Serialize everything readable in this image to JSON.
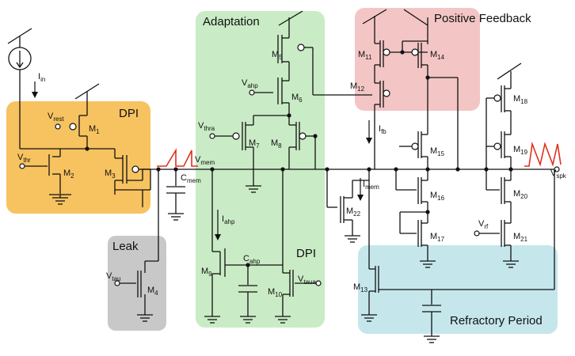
{
  "blocks": {
    "dpi_in": "DPI",
    "adaptation": "Adaptation",
    "positive_feedback": "Positive Feedback",
    "leak": "Leak",
    "dpi_adapt": "DPI",
    "refractory": "Refractory Period"
  },
  "block_colors": {
    "dpi_in": "#f7c260",
    "adaptation": "#c9ebc5",
    "positive_feedback": "#f3c5c5",
    "leak": "#c8c8c8",
    "refractory": "#c5e7ec"
  },
  "transistors": {
    "m1": {
      "name": "M",
      "sub": "1"
    },
    "m2": {
      "name": "M",
      "sub": "2"
    },
    "m3": {
      "name": "M",
      "sub": "3"
    },
    "m4": {
      "name": "M",
      "sub": "4"
    },
    "m5": {
      "name": "M",
      "sub": "5"
    },
    "m6": {
      "name": "M",
      "sub": "6"
    },
    "m7": {
      "name": "M",
      "sub": "7"
    },
    "m8": {
      "name": "M",
      "sub": "8"
    },
    "m9": {
      "name": "M",
      "sub": "9"
    },
    "m10": {
      "name": "M",
      "sub": "10"
    },
    "m11": {
      "name": "M",
      "sub": "11"
    },
    "m12": {
      "name": "M",
      "sub": "12"
    },
    "m13": {
      "name": "M",
      "sub": "13"
    },
    "m14": {
      "name": "M",
      "sub": "14"
    },
    "m15": {
      "name": "M",
      "sub": "15"
    },
    "m16": {
      "name": "M",
      "sub": "16"
    },
    "m17": {
      "name": "M",
      "sub": "17"
    },
    "m18": {
      "name": "M",
      "sub": "18"
    },
    "m19": {
      "name": "M",
      "sub": "19"
    },
    "m20": {
      "name": "M",
      "sub": "20"
    },
    "m21": {
      "name": "M",
      "sub": "21"
    },
    "m22": {
      "name": "M",
      "sub": "22"
    }
  },
  "signals": {
    "iin": {
      "name": "I",
      "sub": "in"
    },
    "vrest": {
      "name": "V",
      "sub": "rest"
    },
    "vthr": {
      "name": "V",
      "sub": "thr"
    },
    "vmem": {
      "name": "V",
      "sub": "mem"
    },
    "cmem": {
      "name": "C",
      "sub": "mem"
    },
    "vtau": {
      "name": "V",
      "sub": "tau"
    },
    "vahp": {
      "name": "V",
      "sub": "ahp"
    },
    "vthra": {
      "name": "V",
      "sub": "thra"
    },
    "iahp": {
      "name": "I",
      "sub": "ahp"
    },
    "cahp": {
      "name": "C",
      "sub": "ahp"
    },
    "vtaua": {
      "name": "V",
      "sub": "taua"
    },
    "ifb": {
      "name": "I",
      "sub": "fb"
    },
    "imem": {
      "name": "I",
      "sub": "mem"
    },
    "vrf": {
      "name": "V",
      "sub": "rf"
    },
    "vspk": {
      "name": "V",
      "sub": "spk"
    }
  }
}
